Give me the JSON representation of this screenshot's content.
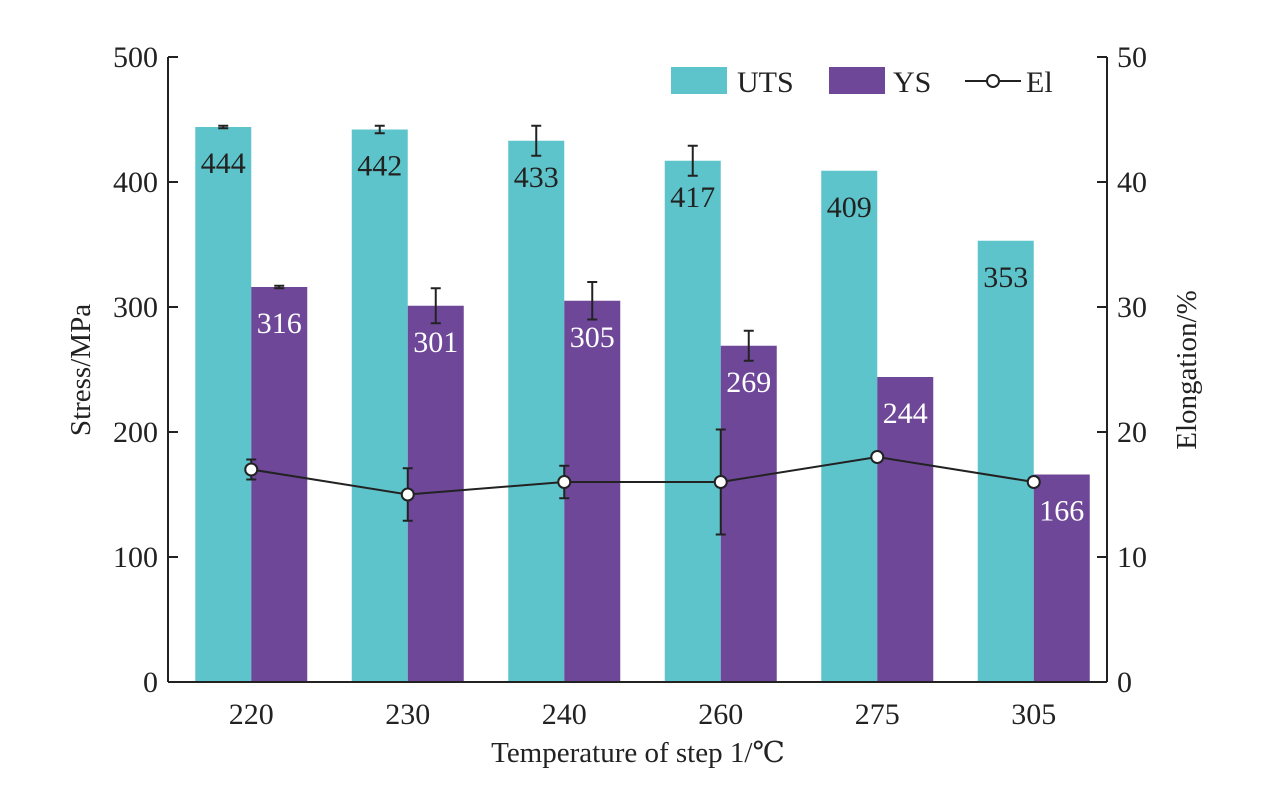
{
  "chart_data": {
    "type": "bar",
    "xlabel": "Temperature of step 1/℃",
    "ylabel": "Stress/MPa",
    "y2label": "Elongation/%",
    "ylim": [
      0,
      500
    ],
    "y2lim": [
      0,
      50
    ],
    "yticks": [
      "0",
      "100",
      "200",
      "300",
      "400",
      "500"
    ],
    "y2ticks": [
      "0",
      "10",
      "20",
      "30",
      "40",
      "50"
    ],
    "categories": [
      "220",
      "230",
      "240",
      "260",
      "275",
      "305"
    ],
    "grid": false,
    "legend_position": "top-right",
    "series": [
      {
        "name": "UTS",
        "kind": "bar",
        "color": "#5ec4cb",
        "axis": "left",
        "values": [
          444,
          442,
          433,
          417,
          409,
          353
        ],
        "labels": [
          "444",
          "442",
          "433",
          "417",
          "409",
          "353"
        ],
        "label_color": "#222222",
        "errors": [
          1,
          3,
          12,
          12,
          null,
          null
        ]
      },
      {
        "name": "YS",
        "kind": "bar",
        "color": "#6e4799",
        "axis": "left",
        "values": [
          316,
          301,
          305,
          269,
          244,
          166
        ],
        "labels": [
          "316",
          "301",
          "305",
          "269",
          "244",
          "166"
        ],
        "label_color": "#ffffff",
        "errors": [
          1,
          14,
          15,
          12,
          null,
          null
        ]
      },
      {
        "name": "El",
        "kind": "line",
        "color": "#222222",
        "axis": "right",
        "values": [
          17,
          15,
          16,
          16,
          18,
          16
        ],
        "errors": [
          0.8,
          2.1,
          1.3,
          4.2,
          null,
          null
        ]
      }
    ]
  }
}
